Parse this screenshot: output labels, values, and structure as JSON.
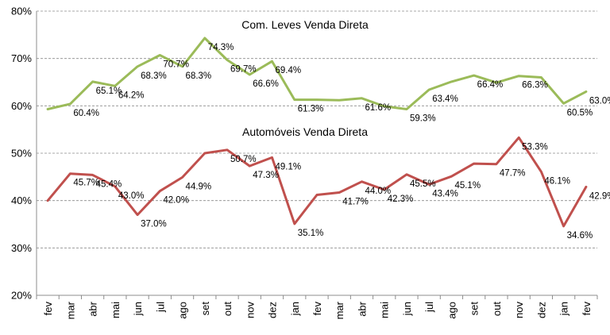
{
  "chart_data": {
    "type": "line",
    "categories": [
      "fev",
      "mar",
      "abr",
      "mai",
      "jun",
      "jul",
      "ago",
      "set",
      "out",
      "nov",
      "dez",
      "jan",
      "fev",
      "mar",
      "abr",
      "mai",
      "jun",
      "jul",
      "ago",
      "set",
      "out",
      "nov",
      "dez",
      "jan",
      "fev"
    ],
    "ylim": [
      20,
      80
    ],
    "yticks": [
      20,
      30,
      40,
      50,
      60,
      70,
      80
    ],
    "ytick_labels": [
      "20%",
      "30%",
      "40%",
      "50%",
      "60%",
      "70%",
      "80%"
    ],
    "grid": true,
    "series": [
      {
        "name": "Com. Leves Venda Direta",
        "color": "#9BBB59",
        "values": [
          59.3,
          60.4,
          65.1,
          64.2,
          68.3,
          70.7,
          68.3,
          74.3,
          69.7,
          66.6,
          69.4,
          61.3,
          61.3,
          61.2,
          61.6,
          59.9,
          59.3,
          63.4,
          65.1,
          66.4,
          64.9,
          66.3,
          66.0,
          60.5,
          63.0
        ],
        "labels": [
          "",
          "60.4%",
          "65.1%",
          "64.2%",
          "68.3%",
          "70.7%",
          "68.3%",
          "74.3%",
          "69.7%",
          "66.6%",
          "69.4%",
          "61.3%",
          "",
          "",
          "61.6%",
          "",
          "59.3%",
          "63.4%",
          "",
          "66.4%",
          "",
          "66.3%",
          "",
          "60.5%",
          "63.0%"
        ]
      },
      {
        "name": "Automóveis Venda Direta",
        "color": "#C0504D",
        "values": [
          40.0,
          45.7,
          45.4,
          43.0,
          37.0,
          42.0,
          44.9,
          50.0,
          50.7,
          47.3,
          49.1,
          35.1,
          41.2,
          41.7,
          44.0,
          42.3,
          45.5,
          43.4,
          45.1,
          47.8,
          47.7,
          53.3,
          46.1,
          34.6,
          42.9
        ],
        "labels": [
          "",
          "45.7%",
          "45.4%",
          "43.0%",
          "37.0%",
          "42.0%",
          "44.9%",
          "",
          "50.7%",
          "47.3%",
          "49.1%",
          "35.1%",
          "",
          "41.7%",
          "44.0%",
          "42.3%",
          "45.5%",
          "43.4%",
          "45.1%",
          "",
          "47.7%",
          "53.3%",
          "46.1%",
          "34.6%",
          "42.9%"
        ]
      }
    ]
  }
}
